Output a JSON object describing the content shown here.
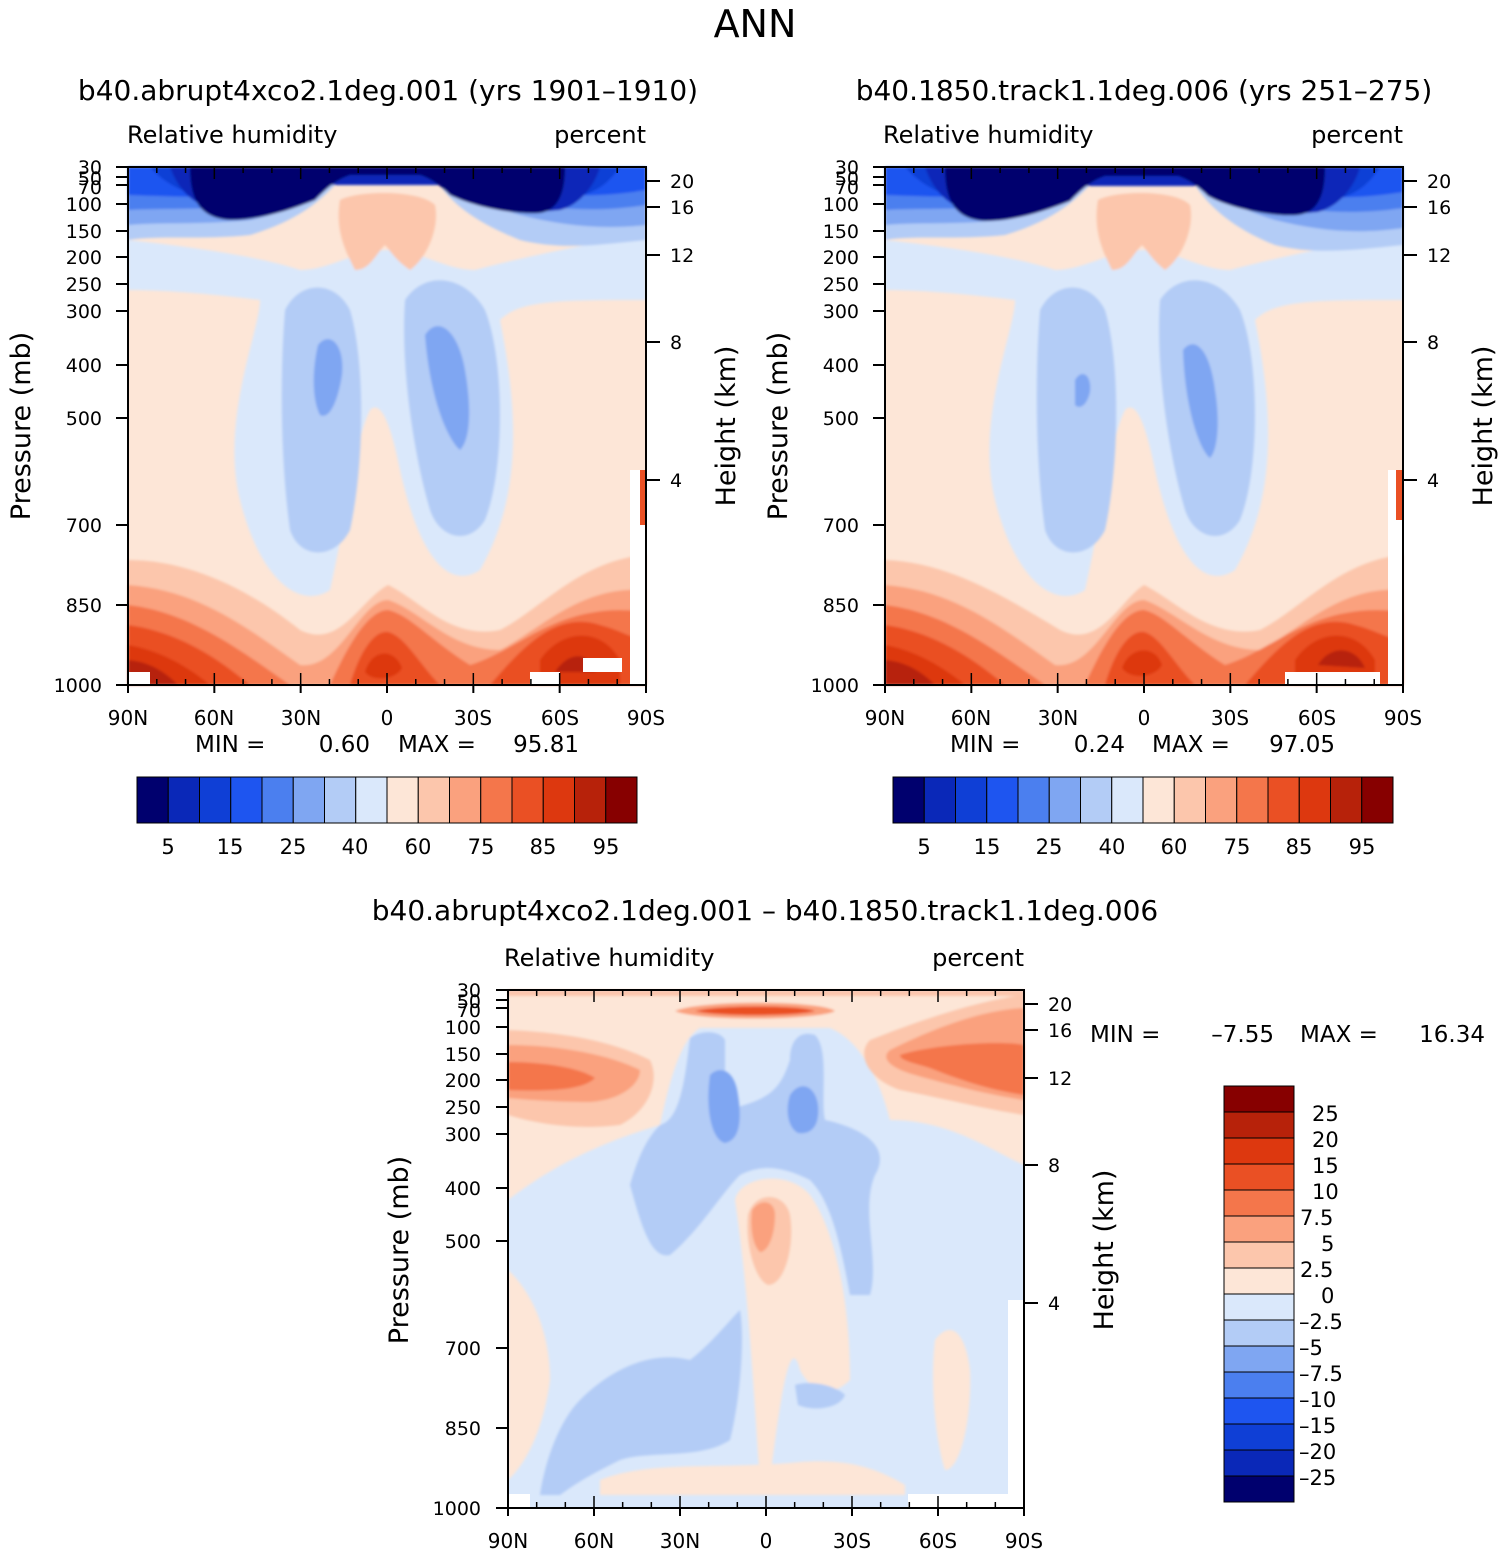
{
  "figure": {
    "title": "ANN"
  },
  "chart_data": [
    {
      "type": "contour",
      "title": "b40.abrupt4xco2.1deg.001 (yrs 1901–1910)",
      "left_label": "Relative humidity",
      "right_label": "percent",
      "ylabel": "Pressure (mb)",
      "ylabel_right": "Height (km)",
      "x_ticks": [
        "90N",
        "60N",
        "30N",
        "0",
        "30S",
        "60S",
        "90S"
      ],
      "y_ticks": [
        "30",
        "50",
        "70",
        "100",
        "150",
        "200",
        "250",
        "300",
        "400",
        "500",
        "700",
        "850",
        "1000"
      ],
      "height_ticks": [
        "20",
        "16",
        "12",
        "8",
        "4"
      ],
      "stats": {
        "min_label": "MIN =",
        "min": "0.60",
        "max_label": "MAX =",
        "max": "95.81"
      },
      "colorbar": {
        "orientation": "horizontal",
        "labels": [
          "5",
          "15",
          "25",
          "40",
          "60",
          "75",
          "85",
          "95"
        ]
      }
    },
    {
      "type": "contour",
      "title": "b40.1850.track1.1deg.006 (yrs 251–275)",
      "left_label": "Relative humidity",
      "right_label": "percent",
      "ylabel": "Pressure (mb)",
      "ylabel_right": "Height (km)",
      "x_ticks": [
        "90N",
        "60N",
        "30N",
        "0",
        "30S",
        "60S",
        "90S"
      ],
      "y_ticks": [
        "30",
        "50",
        "70",
        "100",
        "150",
        "200",
        "250",
        "300",
        "400",
        "500",
        "700",
        "850",
        "1000"
      ],
      "height_ticks": [
        "20",
        "16",
        "12",
        "8",
        "4"
      ],
      "stats": {
        "min_label": "MIN =",
        "min": "0.24",
        "max_label": "MAX =",
        "max": "97.05"
      },
      "colorbar": {
        "orientation": "horizontal",
        "labels": [
          "5",
          "15",
          "25",
          "40",
          "60",
          "75",
          "85",
          "95"
        ]
      }
    },
    {
      "type": "contour",
      "title": "b40.abrupt4xco2.1deg.001 – b40.1850.track1.1deg.006",
      "left_label": "Relative humidity",
      "right_label": "percent",
      "ylabel": "Pressure (mb)",
      "ylabel_right": "Height (km)",
      "x_ticks": [
        "90N",
        "60N",
        "30N",
        "0",
        "30S",
        "60S",
        "90S"
      ],
      "y_ticks": [
        "30",
        "50",
        "70",
        "100",
        "150",
        "200",
        "250",
        "300",
        "400",
        "500",
        "700",
        "850",
        "1000"
      ],
      "height_ticks": [
        "20",
        "16",
        "12",
        "8",
        "4"
      ],
      "stats": {
        "min_label": "MIN =",
        "min": "–7.55",
        "max_label": "MAX =",
        "max": "16.34"
      },
      "colorbar": {
        "orientation": "vertical",
        "labels": [
          "25",
          "20",
          "15",
          "10",
          "7.5",
          "5",
          "2.5",
          "0",
          "–2.5",
          "–5",
          "–7.5",
          "–10",
          "–15",
          "–20",
          "–25"
        ]
      }
    }
  ],
  "colors": {
    "scale": [
      "#00006e",
      "#0a28b8",
      "#0f3fd6",
      "#1e55f0",
      "#4b7fef",
      "#7fa6f2",
      "#b3ccf6",
      "#dae8fb",
      "#fde6d7",
      "#fcc6ac",
      "#faa17e",
      "#f4764b",
      "#ea5024",
      "#dd380f",
      "#b7220a",
      "#870000"
    ]
  }
}
